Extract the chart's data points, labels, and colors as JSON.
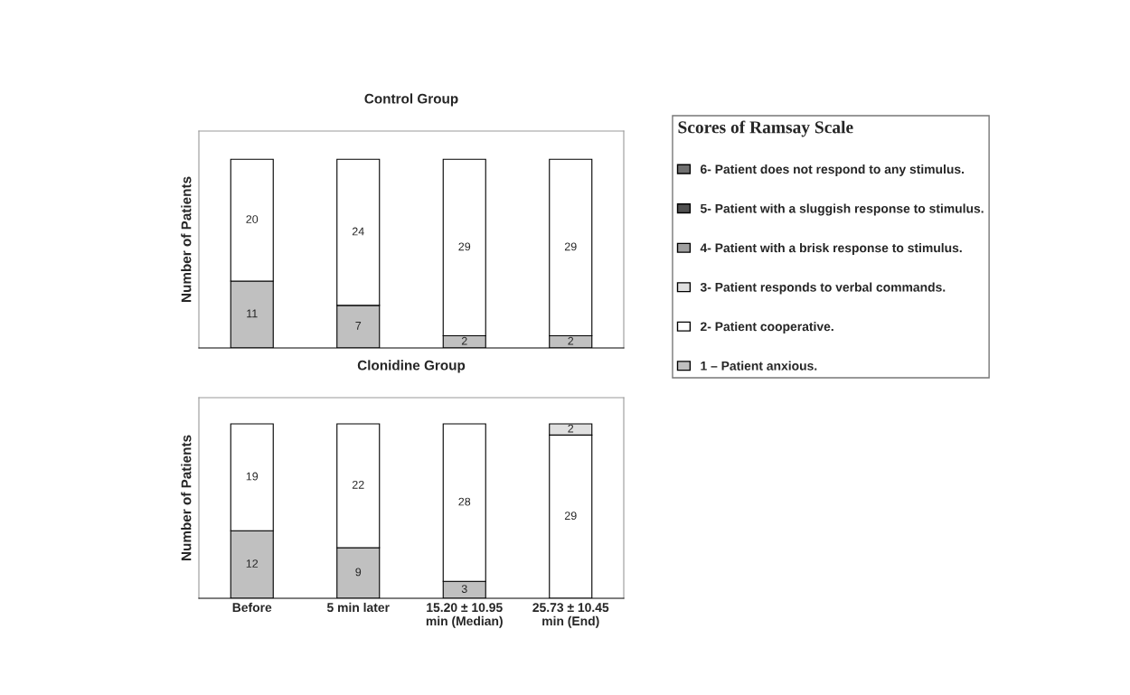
{
  "chart_data": [
    {
      "type": "bar",
      "title": "Control Group",
      "ylabel": "Number of Patients",
      "stacked": true,
      "data_labels": true,
      "legend": "right",
      "legend_title": "Scores of Ramsay Scale",
      "grid": false,
      "categories": [
        null,
        null,
        null,
        null
      ],
      "series": [
        {
          "name": "1 – Patient anxious.",
          "color": "#c0c0c0",
          "values": [
            11,
            7,
            2,
            2
          ]
        },
        {
          "name": "2- Patient cooperative.",
          "color": "#ffffff",
          "values": [
            20,
            24,
            29,
            29
          ]
        },
        {
          "name": "3- Patient responds to verbal commands.",
          "color": "#e0e0e0",
          "values": [
            null,
            null,
            null,
            null
          ]
        },
        {
          "name": "4- Patient with a brisk response to stimulus.",
          "color": "#a0a0a0",
          "values": [
            null,
            null,
            null,
            null
          ]
        },
        {
          "name": "5- Patient with a sluggish response to stimulus.",
          "color": "#505050",
          "values": [
            null,
            null,
            null,
            null
          ]
        },
        {
          "name": "6- Patient does not respond to any stimulus.",
          "color": "#707070",
          "values": [
            null,
            null,
            null,
            null
          ]
        }
      ]
    },
    {
      "type": "bar",
      "title": "Clonidine Group",
      "ylabel": "Number of Patients",
      "stacked": true,
      "data_labels": true,
      "tick_labels": "x",
      "legend": false,
      "grid": false,
      "categories": [
        "Before",
        "5 min later",
        "15.20 ± 10.95\nmin (Median)",
        "25.73 ± 10.45\nmin (End)"
      ],
      "series": [
        {
          "color": "#c0c0c0",
          "values": [
            12,
            9,
            3,
            null
          ]
        },
        {
          "color": "#ffffff",
          "values": [
            19,
            22,
            28,
            29
          ]
        },
        {
          "color": "#e0e0e0",
          "values": [
            null,
            null,
            null,
            2
          ]
        }
      ]
    }
  ]
}
